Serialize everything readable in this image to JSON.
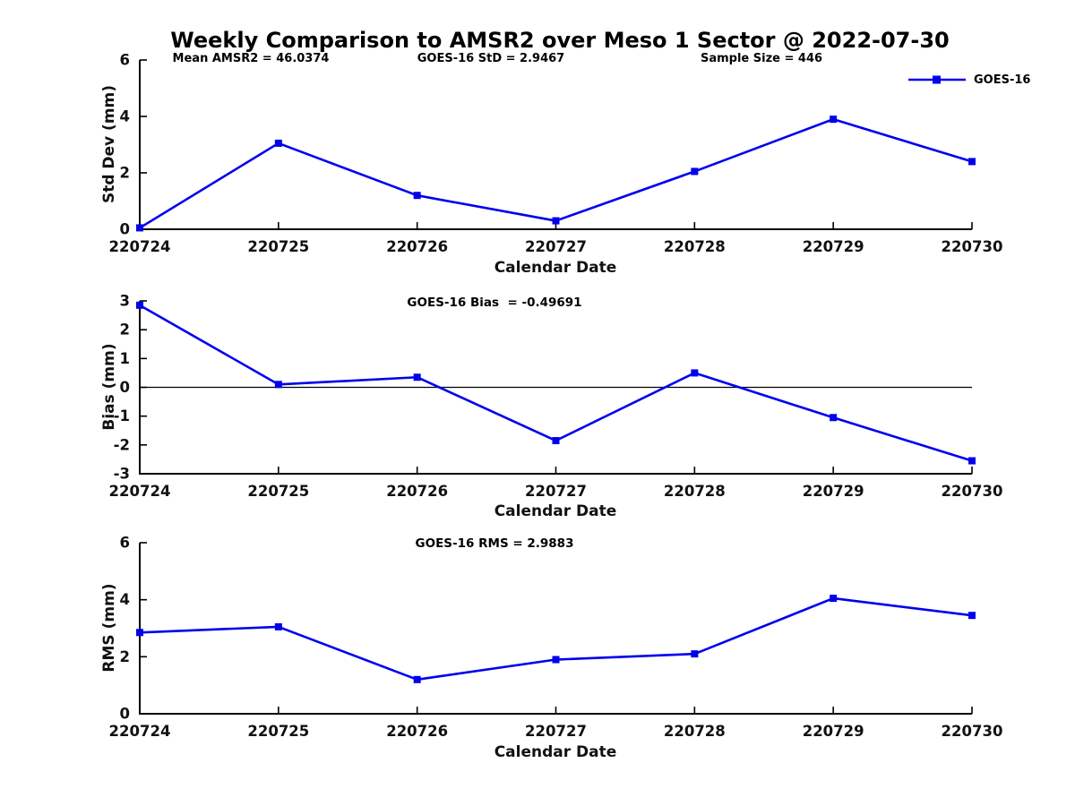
{
  "title": "Weekly Comparison to AMSR2 over Meso 1 Sector @ 2022-07-30",
  "header_stats": {
    "mean_amsr2": "Mean AMSR2 = 46.0374",
    "goes16_std": "GOES-16 StD = 2.9467",
    "sample_size": "Sample Size = 446"
  },
  "legend": {
    "label": "GOES-16"
  },
  "colors": {
    "line": "#0000EE",
    "axis": "#000000"
  },
  "chart_data": [
    {
      "type": "line",
      "title": "",
      "xlabel": "Calendar Date",
      "ylabel": "Std Dev (mm)",
      "categories": [
        "220724",
        "220725",
        "220726",
        "220727",
        "220728",
        "220729",
        "220730"
      ],
      "series": [
        {
          "name": "GOES-16",
          "values": [
            0.05,
            3.05,
            1.2,
            0.3,
            2.05,
            3.9,
            2.4
          ]
        }
      ],
      "ylim": [
        0,
        6
      ],
      "yticks": [
        0,
        2,
        4,
        6
      ],
      "zero_line": false,
      "legend_position": "top-right-outside",
      "grid": false
    },
    {
      "type": "line",
      "title": "GOES-16 Bias  = -0.49691",
      "xlabel": "Calendar Date",
      "ylabel": "Bias (mm)",
      "categories": [
        "220724",
        "220725",
        "220726",
        "220727",
        "220728",
        "220729",
        "220730"
      ],
      "series": [
        {
          "name": "GOES-16",
          "values": [
            2.85,
            0.1,
            0.35,
            -1.85,
            0.5,
            -1.05,
            -2.55
          ]
        }
      ],
      "ylim": [
        -3,
        3
      ],
      "yticks": [
        -3,
        -2,
        -1,
        0,
        1,
        2,
        3
      ],
      "zero_line": true,
      "grid": false
    },
    {
      "type": "line",
      "title": "GOES-16 RMS = 2.9883",
      "xlabel": "Calendar Date",
      "ylabel": "RMS (mm)",
      "categories": [
        "220724",
        "220725",
        "220726",
        "220727",
        "220728",
        "220729",
        "220730"
      ],
      "series": [
        {
          "name": "GOES-16",
          "values": [
            2.85,
            3.05,
            1.2,
            1.9,
            2.1,
            4.05,
            3.45
          ]
        }
      ],
      "ylim": [
        0,
        6
      ],
      "yticks": [
        0,
        2,
        4,
        6
      ],
      "zero_line": false,
      "grid": false
    }
  ]
}
